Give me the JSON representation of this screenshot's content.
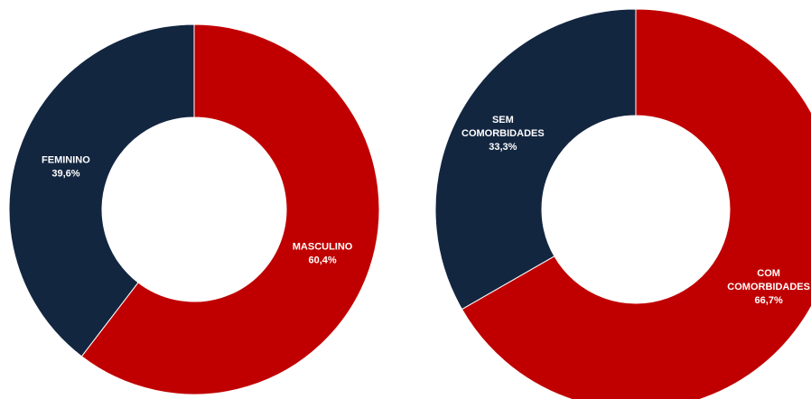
{
  "chart_data": [
    {
      "type": "pie",
      "variant": "donut",
      "title": "",
      "slices": [
        {
          "label_lines": [
            "MASCULINO"
          ],
          "value_label": "60,4%",
          "value": 60.4,
          "color": "#C00000"
        },
        {
          "label_lines": [
            "FEMININO"
          ],
          "value_label": "39,6%",
          "value": 39.6,
          "color": "#132640"
        }
      ]
    },
    {
      "type": "pie",
      "variant": "donut",
      "title": "",
      "slices": [
        {
          "label_lines": [
            "COM",
            "COMORBIDADES"
          ],
          "value_label": "66,7%",
          "value": 66.7,
          "color": "#C00000"
        },
        {
          "label_lines": [
            "SEM",
            "COMORBIDADES"
          ],
          "value_label": "33,3%",
          "value": 33.3,
          "color": "#132640"
        }
      ]
    }
  ]
}
